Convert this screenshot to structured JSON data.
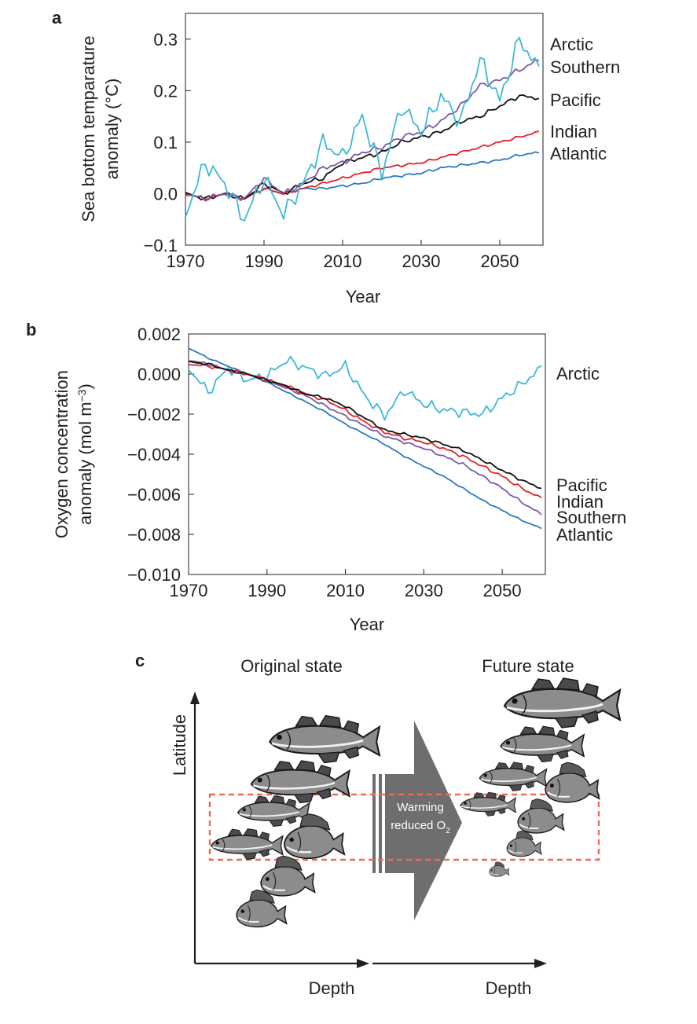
{
  "panels": {
    "a": {
      "letter": "a"
    },
    "b": {
      "letter": "b"
    },
    "c": {
      "letter": "c",
      "original_title": "Original state",
      "future_title": "Future state",
      "y_axis_label": "Latitude",
      "x_axis_label_left": "Depth",
      "x_axis_label_right": "Depth",
      "arrow_text_line1": "Warming",
      "arrow_text_line2_prefix": "reduced O",
      "arrow_text_line2_sub": "2"
    }
  },
  "colors": {
    "Arctic": "#3fb8d4",
    "Southern": "#7b5aa6",
    "Pacific": "#111111",
    "Indian": "#e3222b",
    "Atlantic": "#2a7bc0",
    "dashed_box": "#f06a4f",
    "arrow": "#6e6e6e"
  },
  "chart_data": [
    {
      "type": "line",
      "title": "",
      "xlabel": "Year",
      "ylabel_line1": "Sea bottom temparature",
      "ylabel_line2": "anomaly (°C)",
      "xlim": [
        1970,
        2061
      ],
      "ylim": [
        -0.1,
        0.35
      ],
      "xticks": [
        1970,
        1990,
        2010,
        2030,
        2050
      ],
      "yticks": [
        -0.1,
        0.0,
        0.1,
        0.2,
        0.3
      ],
      "ytick_labels": [
        "−0.1",
        "0.0",
        "0.1",
        "0.2",
        "0.3"
      ],
      "legend_placement": "right-of-plot labels",
      "legend_order": [
        "Arctic",
        "Southern",
        "Pacific",
        "Indian",
        "Atlantic"
      ],
      "x": [
        1970,
        1975,
        1980,
        1985,
        1990,
        1995,
        2000,
        2005,
        2010,
        2015,
        2020,
        2025,
        2030,
        2035,
        2040,
        2045,
        2050,
        2055,
        2060
      ],
      "series": [
        {
          "name": "Arctic",
          "values": [
            -0.04,
            0.06,
            0.02,
            -0.05,
            0.03,
            -0.04,
            0.02,
            0.1,
            0.07,
            0.15,
            0.04,
            0.17,
            0.12,
            0.19,
            0.14,
            0.26,
            0.18,
            0.3,
            0.24
          ]
        },
        {
          "name": "Southern",
          "values": [
            0.0,
            -0.01,
            0.0,
            -0.01,
            0.03,
            0.0,
            0.02,
            0.05,
            0.06,
            0.08,
            0.09,
            0.11,
            0.12,
            0.14,
            0.17,
            0.21,
            0.22,
            0.24,
            0.26
          ]
        },
        {
          "name": "Pacific",
          "values": [
            0.0,
            -0.01,
            0.0,
            -0.01,
            0.02,
            0.0,
            0.02,
            0.03,
            0.06,
            0.07,
            0.08,
            0.1,
            0.11,
            0.12,
            0.14,
            0.15,
            0.17,
            0.19,
            0.185
          ]
        },
        {
          "name": "Indian",
          "values": [
            0.0,
            -0.01,
            0.0,
            -0.01,
            0.01,
            0.0,
            0.01,
            0.02,
            0.03,
            0.04,
            0.05,
            0.055,
            0.06,
            0.07,
            0.08,
            0.09,
            0.1,
            0.11,
            0.12
          ]
        },
        {
          "name": "Atlantic",
          "values": [
            0.0,
            -0.01,
            0.0,
            -0.01,
            0.01,
            0.0,
            0.01,
            0.01,
            0.015,
            0.02,
            0.03,
            0.035,
            0.04,
            0.05,
            0.055,
            0.06,
            0.065,
            0.075,
            0.08
          ]
        }
      ]
    },
    {
      "type": "line",
      "title": "",
      "xlabel": "Year",
      "ylabel_line1": "Oxygen concentration",
      "ylabel_line2_prefix": "anomaly (mol m",
      "ylabel_line2_sup": "−3",
      "ylabel_line2_suffix": ")",
      "xlim": [
        1970,
        2061
      ],
      "ylim": [
        -0.01,
        0.002
      ],
      "xticks": [
        1970,
        1990,
        2010,
        2030,
        2050
      ],
      "yticks": [
        -0.01,
        -0.008,
        -0.006,
        -0.004,
        -0.002,
        0.0,
        0.002
      ],
      "ytick_labels": [
        "−0.010",
        "−0.008",
        "−0.006",
        "−0.004",
        "−0.002",
        "0.000",
        "0.002"
      ],
      "legend_placement": "right-of-plot labels",
      "legend_order": [
        "Arctic",
        "Pacific",
        "Indian",
        "Southern",
        "Atlantic"
      ],
      "x": [
        1970,
        1975,
        1980,
        1985,
        1990,
        1995,
        2000,
        2005,
        2010,
        2015,
        2020,
        2025,
        2030,
        2035,
        2040,
        2045,
        2050,
        2055,
        2060
      ],
      "series": [
        {
          "name": "Arctic",
          "values": [
            0.0003,
            -0.0009,
            0.0003,
            -0.0003,
            -0.0001,
            0.0007,
            0.0003,
            -0.0001,
            0.0004,
            -0.0011,
            -0.0021,
            -0.0008,
            -0.0015,
            -0.0018,
            -0.0019,
            -0.002,
            -0.0012,
            -0.0005,
            0.0003
          ]
        },
        {
          "name": "Pacific",
          "values": [
            0.0006,
            0.0005,
            0.0002,
            0.0,
            -0.0003,
            -0.0006,
            -0.001,
            -0.0012,
            -0.0016,
            -0.0022,
            -0.0028,
            -0.003,
            -0.0032,
            -0.0035,
            -0.0038,
            -0.0043,
            -0.0048,
            -0.0053,
            -0.0057
          ]
        },
        {
          "name": "Indian",
          "values": [
            0.0005,
            0.0004,
            0.0002,
            0.0,
            -0.0003,
            -0.0006,
            -0.001,
            -0.0013,
            -0.0018,
            -0.0024,
            -0.0029,
            -0.0032,
            -0.0034,
            -0.0037,
            -0.0041,
            -0.0046,
            -0.0051,
            -0.0057,
            -0.0062
          ]
        },
        {
          "name": "Southern",
          "values": [
            0.0007,
            0.0005,
            0.0002,
            0.0,
            -0.0003,
            -0.0007,
            -0.0011,
            -0.0016,
            -0.0021,
            -0.0026,
            -0.0031,
            -0.0034,
            -0.0037,
            -0.0041,
            -0.0045,
            -0.0051,
            -0.0057,
            -0.0064,
            -0.007
          ]
        },
        {
          "name": "Atlantic",
          "values": [
            0.0013,
            0.0008,
            0.0004,
            0.0,
            -0.0004,
            -0.0009,
            -0.0014,
            -0.0019,
            -0.0025,
            -0.003,
            -0.0035,
            -0.0041,
            -0.0046,
            -0.0051,
            -0.0057,
            -0.0063,
            -0.0068,
            -0.0073,
            -0.0077
          ]
        }
      ]
    }
  ]
}
